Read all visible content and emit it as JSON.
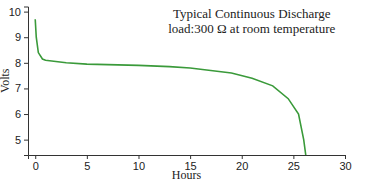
{
  "chart_data": {
    "type": "line",
    "title": "Typical Continuous Discharge",
    "subtitle": "load:300 Ω at room temperature",
    "x_label": "Hours",
    "y_label": "Volts",
    "x": [
      0,
      0.1,
      0.3,
      0.7,
      1,
      3,
      5,
      10,
      13,
      15,
      17,
      19,
      21,
      23,
      24.5,
      25.5,
      26,
      26.2
    ],
    "values": [
      9.7,
      9.0,
      8.4,
      8.15,
      8.1,
      8.0,
      7.95,
      7.9,
      7.85,
      7.8,
      7.7,
      7.6,
      7.4,
      7.1,
      6.6,
      6.0,
      5.0,
      4.4
    ],
    "color": "#3a9a3a",
    "xlim": [
      -0.7,
      30
    ],
    "ylim": [
      4.4,
      10.2
    ],
    "xticks": [
      0,
      5,
      10,
      15,
      20,
      25,
      30
    ],
    "yticks": [
      5,
      6,
      7,
      8,
      9,
      10
    ],
    "grid": false
  }
}
